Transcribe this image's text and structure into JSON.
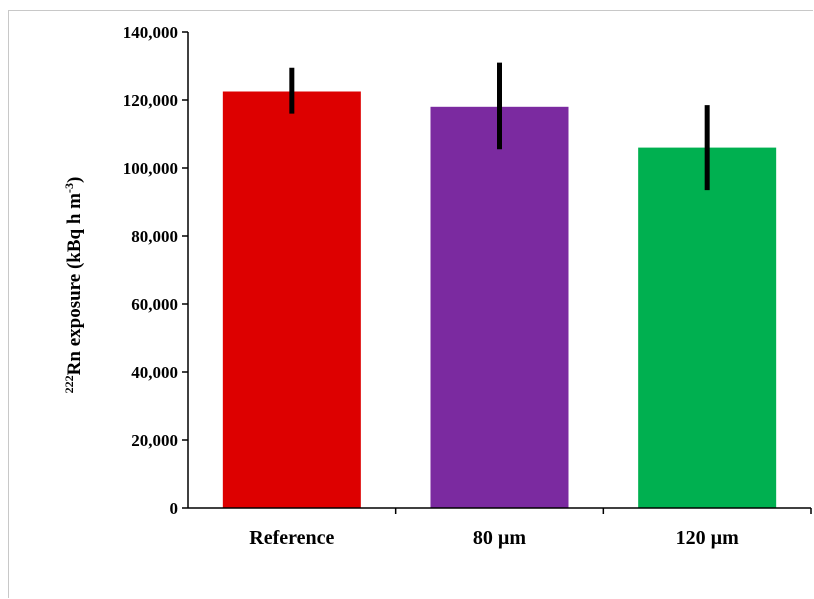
{
  "chart_data": {
    "type": "bar",
    "categories": [
      "Reference",
      "80 µm",
      "120 µm"
    ],
    "values": [
      122500,
      118000,
      106000
    ],
    "error_low": [
      116000,
      105500,
      93500
    ],
    "error_high": [
      129500,
      131000,
      118500
    ],
    "colors": [
      "#dd0000",
      "#7b2aa0",
      "#00b050"
    ],
    "error_color": "#000000",
    "title": "",
    "xlabel": "",
    "ylabel": {
      "superscript": "222",
      "main": "Rn exposure (kBq h m",
      "unit_superscript": "-3",
      "close": ")"
    },
    "ylim": [
      0,
      140000
    ],
    "yticks": [
      0,
      20000,
      40000,
      60000,
      80000,
      100000,
      120000,
      140000
    ],
    "ytick_labels": [
      "0",
      "20,000",
      "40,000",
      "60,000",
      "80,000",
      "100,000",
      "120,000",
      "140,000"
    ],
    "grid": false,
    "legend": "none"
  }
}
